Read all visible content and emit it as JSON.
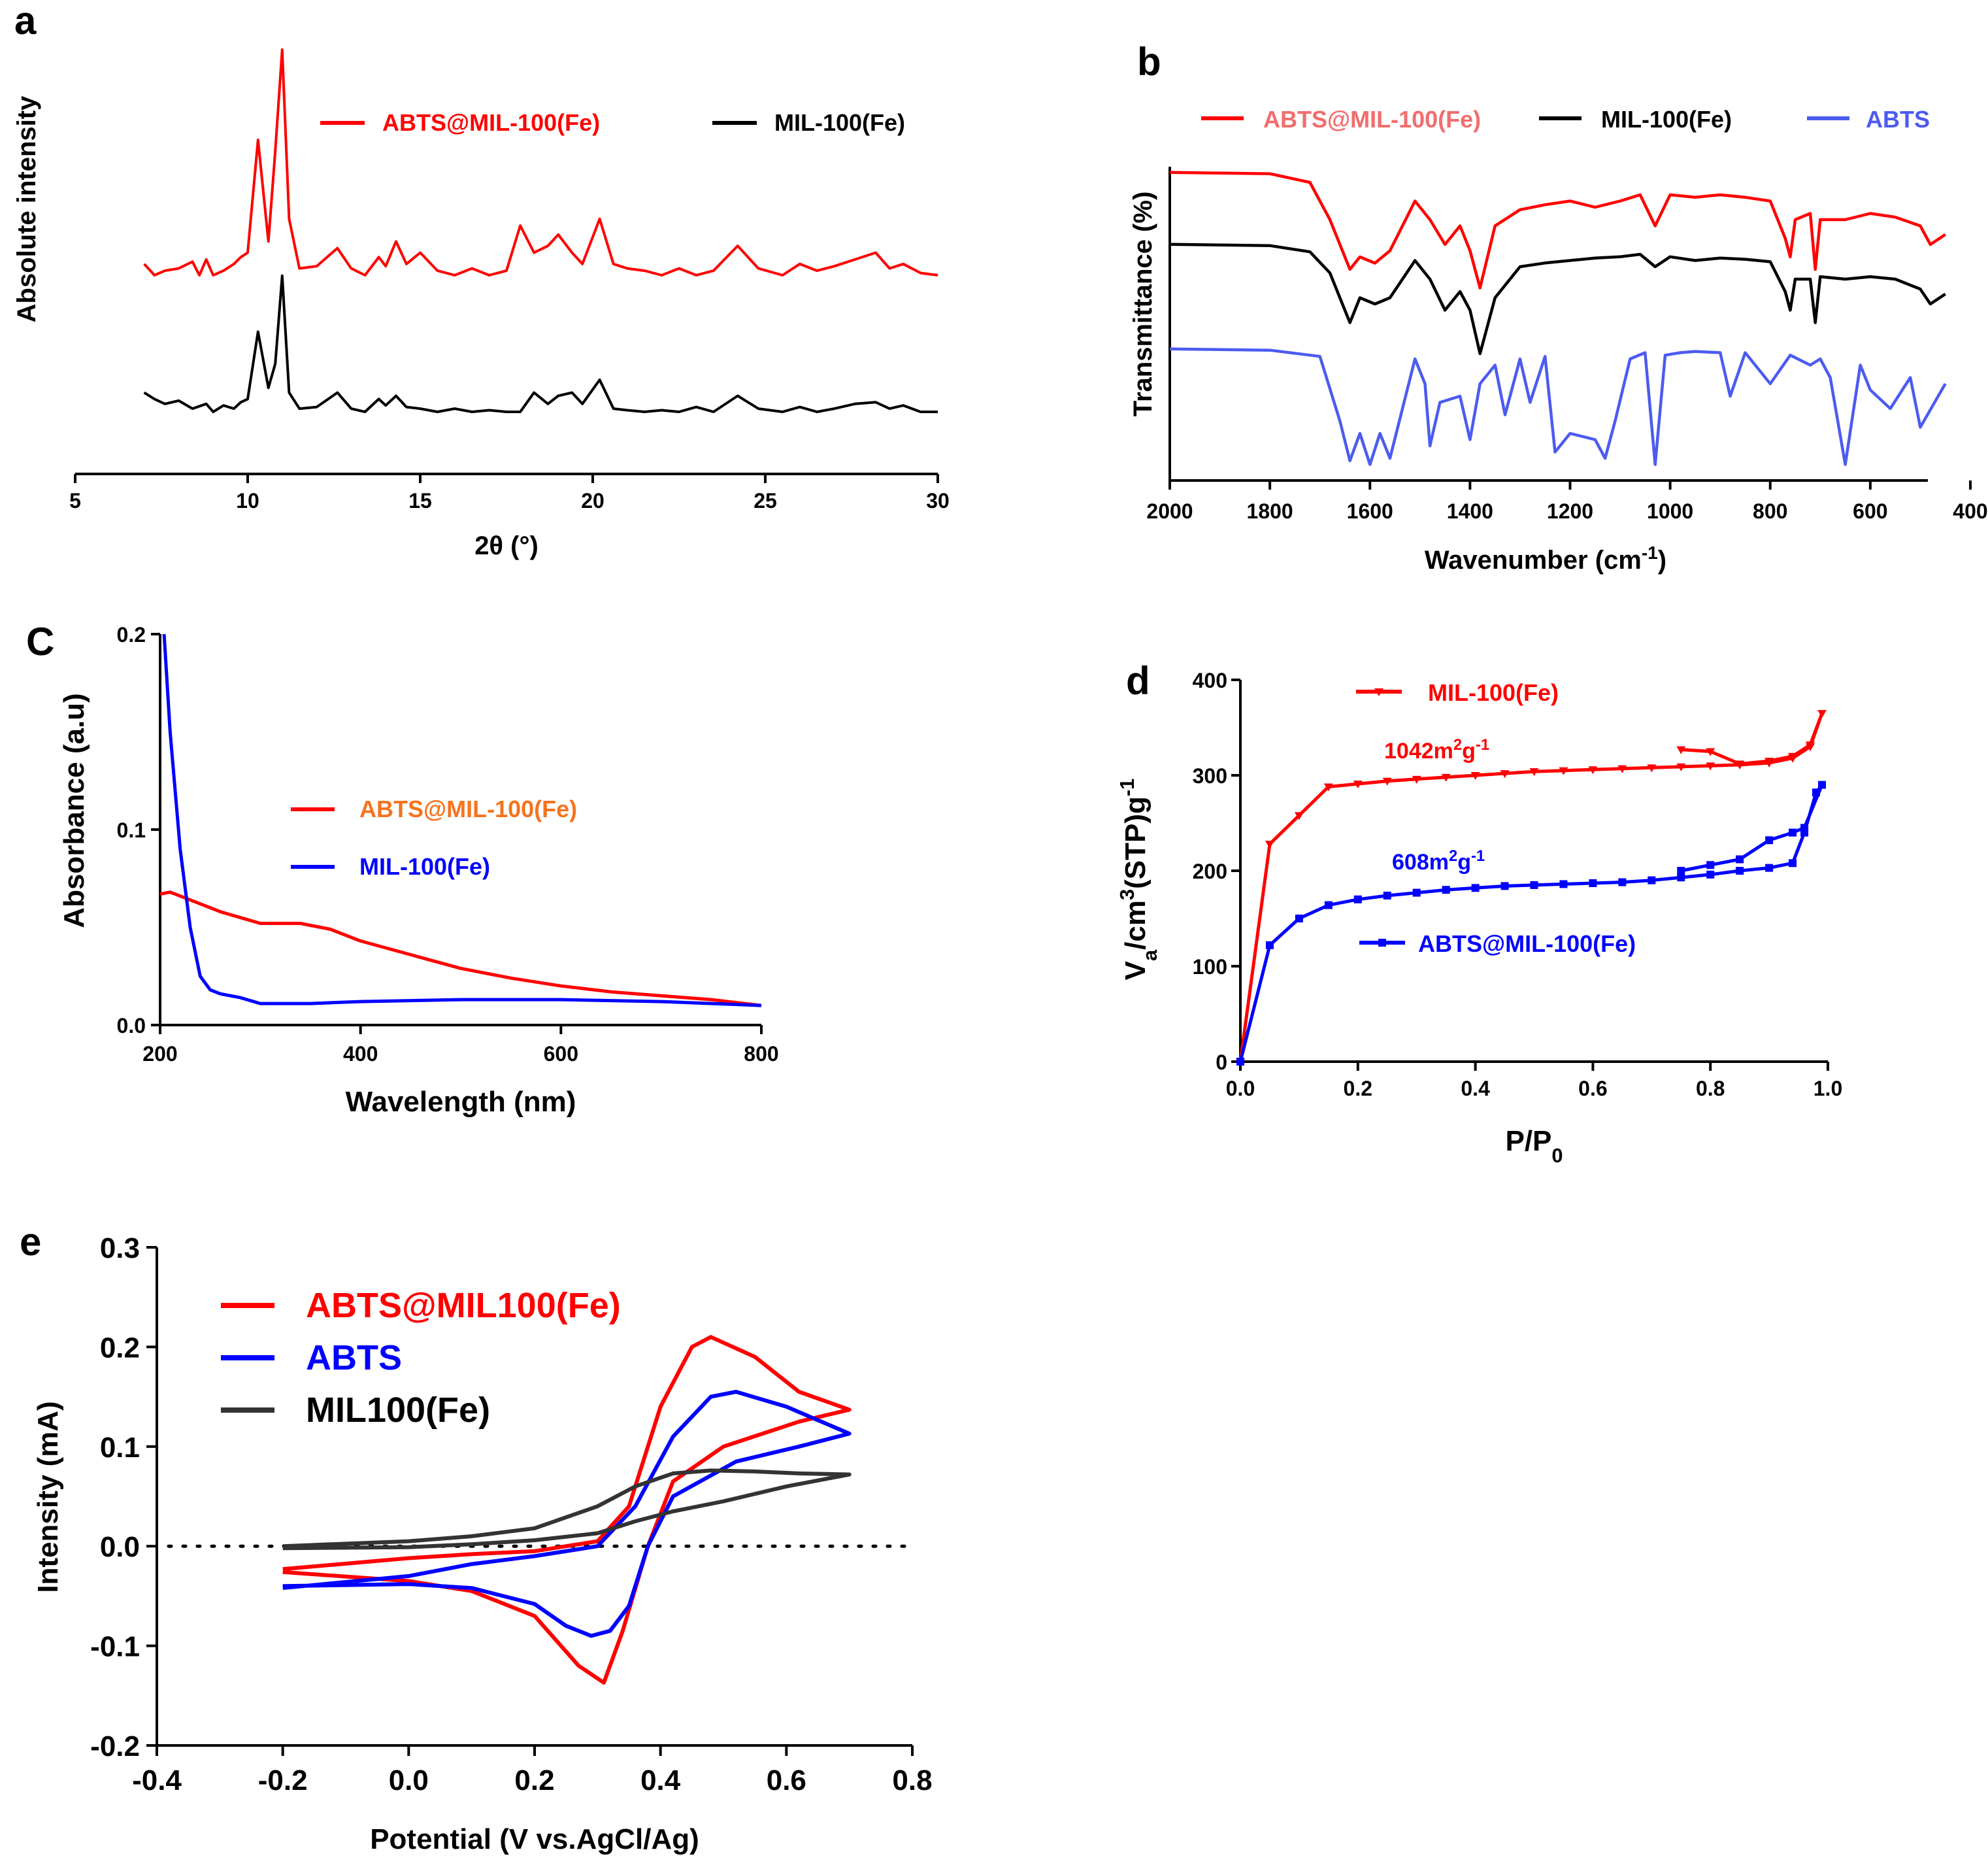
{
  "figure": {
    "panels": [
      "a",
      "b",
      "C",
      "d",
      "e"
    ]
  },
  "chart_data": [
    {
      "id": "a",
      "type": "line",
      "title": "",
      "xlabel": "2θ (°)",
      "ylabel": "Absolute intensity",
      "xlim": [
        5,
        30
      ],
      "xticks": [
        5,
        10,
        15,
        20,
        25,
        30
      ],
      "yticks": [],
      "grid": false,
      "legend_placement": "top-right",
      "series": [
        {
          "name": "ABTS@MIL-100(Fe)",
          "color": "#ff0000",
          "offset": 1.0,
          "x": [
            7.0,
            7.3,
            7.6,
            8.0,
            8.4,
            8.6,
            8.8,
            9.0,
            9.3,
            9.6,
            9.8,
            10.0,
            10.3,
            10.6,
            10.8,
            11.0,
            11.2,
            11.5,
            12.0,
            12.6,
            13.0,
            13.4,
            13.8,
            14.0,
            14.3,
            14.6,
            15.0,
            15.5,
            16.0,
            16.5,
            17.0,
            17.5,
            17.9,
            18.3,
            18.7,
            19.0,
            19.4,
            19.7,
            20.2,
            20.6,
            21.0,
            21.5,
            22.0,
            22.5,
            23.0,
            23.5,
            24.2,
            24.8,
            25.5,
            26.0,
            26.5,
            27.0,
            27.6,
            28.2,
            28.6,
            29.0,
            29.5,
            30.0
          ],
          "y": [
            0.05,
            0.0,
            0.02,
            0.03,
            0.06,
            0.0,
            0.07,
            0.0,
            0.02,
            0.05,
            0.08,
            0.1,
            0.6,
            0.15,
            0.55,
            1.0,
            0.25,
            0.03,
            0.04,
            0.12,
            0.03,
            0.0,
            0.08,
            0.04,
            0.15,
            0.05,
            0.1,
            0.02,
            0.0,
            0.03,
            0.0,
            0.02,
            0.22,
            0.1,
            0.13,
            0.18,
            0.1,
            0.05,
            0.25,
            0.05,
            0.03,
            0.02,
            0.0,
            0.03,
            0.0,
            0.02,
            0.13,
            0.03,
            0.0,
            0.05,
            0.02,
            0.04,
            0.07,
            0.1,
            0.03,
            0.05,
            0.01,
            0.0
          ]
        },
        {
          "name": "MIL-100(Fe)",
          "color": "#000000",
          "offset": 0.0,
          "x": [
            7.0,
            7.3,
            7.6,
            8.0,
            8.4,
            8.8,
            9.0,
            9.3,
            9.6,
            9.8,
            10.0,
            10.3,
            10.6,
            10.8,
            11.0,
            11.2,
            11.5,
            12.0,
            12.6,
            13.0,
            13.4,
            13.8,
            14.0,
            14.3,
            14.6,
            15.0,
            15.5,
            16.0,
            16.5,
            17.0,
            17.5,
            17.9,
            18.3,
            18.7,
            19.0,
            19.4,
            19.7,
            20.2,
            20.6,
            21.0,
            21.5,
            22.0,
            22.5,
            23.0,
            23.5,
            24.2,
            24.8,
            25.5,
            26.0,
            26.5,
            27.0,
            27.6,
            28.2,
            28.6,
            29.0,
            29.5,
            30.0
          ],
          "y": [
            0.12,
            0.08,
            0.05,
            0.07,
            0.02,
            0.05,
            0.0,
            0.04,
            0.02,
            0.06,
            0.08,
            0.5,
            0.15,
            0.3,
            0.85,
            0.12,
            0.02,
            0.03,
            0.12,
            0.02,
            0.0,
            0.08,
            0.04,
            0.1,
            0.03,
            0.02,
            0.0,
            0.02,
            0.0,
            0.01,
            0.0,
            0.0,
            0.12,
            0.05,
            0.1,
            0.12,
            0.05,
            0.2,
            0.02,
            0.01,
            0.0,
            0.01,
            0.0,
            0.03,
            0.0,
            0.1,
            0.02,
            0.0,
            0.03,
            0.0,
            0.02,
            0.05,
            0.06,
            0.02,
            0.04,
            0.0,
            0.0
          ]
        }
      ]
    },
    {
      "id": "b",
      "type": "line",
      "title": "",
      "xlabel": "Wavenumber (cm-1)",
      "ylabel": "Transmittance (%)",
      "xlim": [
        2000,
        400
      ],
      "xticks": [
        2000,
        1800,
        1600,
        1400,
        1200,
        1000,
        800,
        600,
        400
      ],
      "yticks": [],
      "grid": false,
      "legend_placement": "top",
      "series": [
        {
          "name": "ABTS@MIL-100(Fe)",
          "color": "#ff0000",
          "label_color": "#f26d6d",
          "offset": 2.0,
          "x": [
            2000,
            1800,
            1720,
            1680,
            1640,
            1620,
            1590,
            1560,
            1510,
            1480,
            1450,
            1420,
            1400,
            1380,
            1350,
            1300,
            1250,
            1200,
            1150,
            1100,
            1060,
            1030,
            1000,
            950,
            900,
            850,
            800,
            770,
            760,
            750,
            720,
            710,
            700,
            650,
            600,
            550,
            500,
            480,
            450
          ],
          "y": [
            0.98,
            0.97,
            0.9,
            0.6,
            0.2,
            0.3,
            0.25,
            0.35,
            0.75,
            0.6,
            0.4,
            0.55,
            0.35,
            0.05,
            0.55,
            0.68,
            0.72,
            0.75,
            0.7,
            0.75,
            0.8,
            0.55,
            0.8,
            0.78,
            0.8,
            0.78,
            0.75,
            0.45,
            0.3,
            0.6,
            0.65,
            0.2,
            0.6,
            0.6,
            0.65,
            0.62,
            0.55,
            0.4,
            0.48
          ]
        },
        {
          "name": "MIL-100(Fe)",
          "color": "#000000",
          "offset": 1.0,
          "x": [
            2000,
            1800,
            1720,
            1680,
            1640,
            1620,
            1590,
            1560,
            1510,
            1480,
            1450,
            1420,
            1400,
            1380,
            1350,
            1300,
            1250,
            1200,
            1150,
            1100,
            1060,
            1030,
            1000,
            950,
            900,
            850,
            800,
            770,
            760,
            750,
            720,
            710,
            700,
            650,
            600,
            550,
            500,
            480,
            450
          ],
          "y": [
            0.98,
            0.97,
            0.92,
            0.75,
            0.35,
            0.55,
            0.5,
            0.55,
            0.85,
            0.7,
            0.45,
            0.6,
            0.45,
            0.1,
            0.55,
            0.8,
            0.83,
            0.85,
            0.87,
            0.88,
            0.9,
            0.8,
            0.88,
            0.85,
            0.87,
            0.86,
            0.84,
            0.6,
            0.45,
            0.7,
            0.7,
            0.35,
            0.72,
            0.7,
            0.72,
            0.7,
            0.62,
            0.5,
            0.58
          ]
        },
        {
          "name": "ABTS",
          "color": "#4c5bf0",
          "label_color": "#4c5bf0",
          "offset": 0.0,
          "x": [
            2000,
            1800,
            1700,
            1660,
            1640,
            1620,
            1600,
            1580,
            1560,
            1510,
            1490,
            1480,
            1460,
            1420,
            1400,
            1380,
            1350,
            1330,
            1300,
            1280,
            1250,
            1230,
            1200,
            1150,
            1130,
            1110,
            1080,
            1050,
            1030,
            1010,
            980,
            950,
            900,
            880,
            850,
            800,
            760,
            720,
            700,
            680,
            650,
            620,
            600,
            560,
            520,
            500,
            450
          ],
          "y": [
            0.98,
            0.97,
            0.92,
            0.4,
            0.08,
            0.3,
            0.05,
            0.3,
            0.1,
            0.9,
            0.7,
            0.2,
            0.55,
            0.6,
            0.25,
            0.7,
            0.85,
            0.45,
            0.9,
            0.55,
            0.92,
            0.15,
            0.3,
            0.25,
            0.1,
            0.4,
            0.9,
            0.95,
            0.05,
            0.93,
            0.95,
            0.96,
            0.95,
            0.6,
            0.95,
            0.7,
            0.93,
            0.85,
            0.9,
            0.75,
            0.05,
            0.85,
            0.65,
            0.5,
            0.75,
            0.35,
            0.7
          ]
        }
      ]
    },
    {
      "id": "C",
      "type": "line",
      "title": "",
      "xlabel": "Wavelength (nm)",
      "ylabel": "Absorbance (a.u)",
      "xlim": [
        200,
        800
      ],
      "ylim": [
        0.0,
        0.2
      ],
      "xticks": [
        200,
        400,
        600,
        800
      ],
      "yticks": [
        0.0,
        0.1,
        0.2
      ],
      "ytick_labels": [
        "0.0",
        "0.1",
        "0.2"
      ],
      "grid": false,
      "legend_placement": "center",
      "series": [
        {
          "name": "ABTS@MIL-100(Fe)",
          "color": "#ff0000",
          "label_color": "#f5731e",
          "x": [
            200,
            210,
            230,
            260,
            300,
            340,
            370,
            400,
            450,
            500,
            550,
            600,
            650,
            700,
            750,
            800
          ],
          "y": [
            0.067,
            0.068,
            0.064,
            0.058,
            0.052,
            0.052,
            0.049,
            0.043,
            0.036,
            0.029,
            0.024,
            0.02,
            0.017,
            0.015,
            0.013,
            0.01
          ]
        },
        {
          "name": "MIL-100(Fe)",
          "color": "#0000ff",
          "label_color": "#0000ff",
          "x": [
            204,
            210,
            220,
            230,
            240,
            250,
            260,
            280,
            300,
            350,
            400,
            500,
            600,
            700,
            800
          ],
          "y": [
            0.2,
            0.15,
            0.09,
            0.05,
            0.025,
            0.018,
            0.016,
            0.014,
            0.011,
            0.011,
            0.012,
            0.013,
            0.013,
            0.012,
            0.01
          ]
        }
      ]
    },
    {
      "id": "d",
      "type": "line",
      "title": "",
      "xlabel": "P/P0",
      "ylabel": "Va/cm3(STP)g-1",
      "xlim": [
        0.0,
        1.0
      ],
      "ylim": [
        0,
        400
      ],
      "xticks": [
        0.0,
        0.2,
        0.4,
        0.6,
        0.8,
        1.0
      ],
      "xtick_labels": [
        "0.0",
        "0.2",
        "0.4",
        "0.6",
        "0.8",
        "1.0"
      ],
      "yticks": [
        0,
        100,
        200,
        300,
        400
      ],
      "grid": false,
      "legend_placement": "inline",
      "annotations": [
        {
          "text": "1042m2g-1",
          "color": "#ff0000",
          "x": 0.3,
          "y": 318
        },
        {
          "text": "608m2g-1",
          "color": "#0000ff",
          "x": 0.3,
          "y": 205
        }
      ],
      "series": [
        {
          "name": "MIL-100(Fe)",
          "color": "#ff0000",
          "marker": "triangle",
          "x": [
            0.0,
            0.05,
            0.1,
            0.15,
            0.2,
            0.25,
            0.3,
            0.35,
            0.4,
            0.45,
            0.5,
            0.55,
            0.6,
            0.65,
            0.7,
            0.75,
            0.8,
            0.85,
            0.9,
            0.94,
            0.97,
            0.99,
            0.97,
            0.94,
            0.9,
            0.85,
            0.8,
            0.75
          ],
          "y": [
            0,
            228,
            258,
            288,
            291,
            294,
            296,
            298,
            300,
            302,
            304,
            305,
            306,
            307,
            308,
            309,
            310,
            311,
            313,
            318,
            330,
            365,
            332,
            320,
            315,
            312,
            325,
            327
          ]
        },
        {
          "name": "ABTS@MIL-100(Fe)",
          "color": "#0000ff",
          "marker": "square",
          "x": [
            0.0,
            0.05,
            0.1,
            0.15,
            0.2,
            0.25,
            0.3,
            0.35,
            0.4,
            0.45,
            0.5,
            0.55,
            0.6,
            0.65,
            0.7,
            0.75,
            0.8,
            0.85,
            0.9,
            0.94,
            0.96,
            0.98,
            0.99,
            0.96,
            0.94,
            0.9,
            0.85,
            0.8,
            0.75
          ],
          "y": [
            0,
            122,
            150,
            164,
            170,
            174,
            177,
            180,
            182,
            184,
            185,
            186,
            187,
            188,
            190,
            193,
            196,
            200,
            203,
            208,
            240,
            282,
            290,
            245,
            240,
            232,
            212,
            206,
            200
          ]
        }
      ]
    },
    {
      "id": "e",
      "type": "line",
      "title": "",
      "xlabel": "Potential (V vs.AgCl/Ag)",
      "ylabel": "Intensity (mA)",
      "xlim": [
        -0.4,
        0.8
      ],
      "ylim": [
        -0.2,
        0.3
      ],
      "xticks": [
        -0.4,
        -0.2,
        0.0,
        0.2,
        0.4,
        0.6,
        0.8
      ],
      "xtick_labels": [
        "-0.4",
        "-0.2",
        "0.0",
        "0.2",
        "0.4",
        "0.6",
        "0.8"
      ],
      "yticks": [
        -0.2,
        -0.1,
        0.0,
        0.1,
        0.2,
        0.3
      ],
      "ytick_labels": [
        "-0.2",
        "-0.1",
        "0.0",
        "0.1",
        "0.2",
        "0.3"
      ],
      "zero_line": true,
      "grid": false,
      "legend_placement": "top-left",
      "series": [
        {
          "name": "ABTS@MIL100(Fe)",
          "color": "#ff0000",
          "x": [
            -0.2,
            0.0,
            0.1,
            0.2,
            0.3,
            0.35,
            0.4,
            0.45,
            0.48,
            0.55,
            0.62,
            0.7,
            0.62,
            0.5,
            0.42,
            0.38,
            0.34,
            0.31,
            0.27,
            0.2,
            0.1,
            0.0,
            -0.2
          ],
          "y": [
            -0.023,
            -0.012,
            -0.008,
            -0.005,
            0.005,
            0.04,
            0.14,
            0.2,
            0.21,
            0.19,
            0.155,
            0.137,
            0.125,
            0.1,
            0.065,
            0.0,
            -0.085,
            -0.137,
            -0.12,
            -0.07,
            -0.045,
            -0.035,
            -0.026
          ]
        },
        {
          "name": "ABTS",
          "color": "#0000ff",
          "x": [
            -0.2,
            0.0,
            0.1,
            0.2,
            0.3,
            0.36,
            0.42,
            0.48,
            0.52,
            0.6,
            0.7,
            0.62,
            0.52,
            0.42,
            0.38,
            0.35,
            0.32,
            0.29,
            0.25,
            0.2,
            0.1,
            0.0,
            -0.2
          ],
          "y": [
            -0.042,
            -0.03,
            -0.018,
            -0.01,
            0.0,
            0.04,
            0.11,
            0.15,
            0.155,
            0.14,
            0.113,
            0.1,
            0.085,
            0.05,
            0.0,
            -0.06,
            -0.085,
            -0.09,
            -0.08,
            -0.058,
            -0.042,
            -0.038,
            -0.04
          ]
        },
        {
          "name": "MIL100(Fe)",
          "color": "#333333",
          "x": [
            -0.2,
            0.0,
            0.1,
            0.2,
            0.3,
            0.36,
            0.42,
            0.48,
            0.55,
            0.62,
            0.7,
            0.6,
            0.5,
            0.42,
            0.36,
            0.3,
            0.2,
            0.1,
            0.0,
            -0.2
          ],
          "y": [
            0.0,
            0.005,
            0.01,
            0.018,
            0.04,
            0.06,
            0.073,
            0.076,
            0.075,
            0.073,
            0.072,
            0.06,
            0.045,
            0.035,
            0.025,
            0.013,
            0.006,
            0.002,
            -0.001,
            -0.002
          ]
        }
      ]
    }
  ]
}
